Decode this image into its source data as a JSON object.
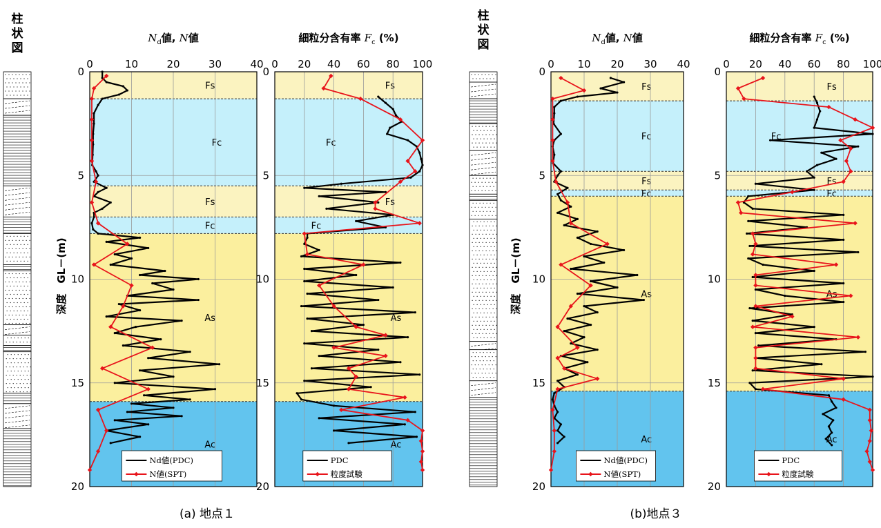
{
  "figure": {
    "site1_caption": "(a) 地点１",
    "site3_caption": "(b)地点３",
    "column_title": "柱状図",
    "depth_label": "深度　GL－(m)"
  },
  "chart_data": [
    {
      "type": "line",
      "panel": "site1-N",
      "title": "Nd値, N値",
      "xlabel": "Nd値, N値",
      "ylabel": "深度　GL－(m)",
      "xlim": [
        0,
        40
      ],
      "ylim": [
        0,
        20
      ],
      "y_inverted": true,
      "xticks": [
        "0",
        "10",
        "20",
        "30",
        "40"
      ],
      "yticks": [
        "0",
        "5",
        "10",
        "15",
        "20"
      ],
      "grid": true,
      "legend_position": "bottom",
      "layers": [
        {
          "label": "Fs",
          "top": 0,
          "bottom": 1.3,
          "color": "#fbf3c0"
        },
        {
          "label": "Fc",
          "top": 1.3,
          "bottom": 5.5,
          "color": "#c5f0fb"
        },
        {
          "label": "Fs",
          "top": 5.5,
          "bottom": 7.0,
          "color": "#fbf3c0"
        },
        {
          "label": "Fc",
          "top": 7.0,
          "bottom": 7.8,
          "color": "#c5f0fb"
        },
        {
          "label": "As",
          "top": 7.8,
          "bottom": 15.9,
          "color": "#fbef9e"
        },
        {
          "label": "Ac",
          "top": 15.9,
          "bottom": 20,
          "color": "#62c4ee"
        }
      ],
      "series": [
        {
          "name": "Nd値(PDC)",
          "color": "#000000",
          "y": [
            0,
            0.3,
            0.5,
            0.7,
            0.9,
            1.1,
            1.3,
            1.6,
            2.0,
            2.5,
            3.0,
            3.5,
            4.0,
            4.5,
            4.8,
            5.0,
            5.3,
            5.6,
            5.8,
            6.0,
            6.3,
            6.6,
            6.8,
            7.0,
            7.3,
            7.6,
            7.8,
            8.0,
            8.2,
            8.5,
            8.8,
            9.0,
            9.3,
            9.6,
            9.8,
            10.0,
            10.2,
            10.5,
            10.8,
            11.0,
            11.2,
            11.5,
            11.8,
            12.0,
            12.3,
            12.6,
            12.9,
            13.2,
            13.5,
            13.8,
            14.1,
            14.4,
            14.7,
            15.0,
            15.3,
            15.6,
            15.8,
            16.0,
            16.2,
            16.4,
            16.6,
            16.8,
            17.0,
            17.3,
            17.6,
            17.9
          ],
          "x": [
            3,
            3,
            4,
            8,
            9,
            7,
            3,
            2,
            1,
            1,
            0.8,
            0.8,
            0.7,
            0.6,
            1.5,
            2,
            1,
            4,
            2,
            1,
            5,
            3,
            1,
            1,
            0.5,
            0.8,
            2,
            12,
            4,
            14,
            6,
            10,
            5,
            18,
            12,
            26,
            15,
            20,
            9,
            26,
            7,
            12,
            4,
            22,
            11,
            6,
            17,
            8,
            24,
            14,
            31,
            12,
            20,
            6,
            30,
            13,
            24,
            10,
            20,
            9,
            22,
            6,
            14,
            4,
            12,
            5
          ]
        },
        {
          "name": "N値(SPT)",
          "color": "#e8141b",
          "y": [
            0.2,
            0.8,
            1.3,
            2.3,
            3.3,
            4.3,
            5.3,
            6.3,
            7.3,
            8.3,
            9.3,
            10.3,
            11.3,
            12.3,
            13.3,
            14.3,
            15.3,
            16.3,
            17.3,
            18.3,
            19.2
          ],
          "x": [
            4,
            1,
            0.5,
            0.5,
            0.5,
            0.5,
            1.5,
            0.5,
            2,
            9,
            1,
            10,
            8,
            5,
            15,
            3,
            14,
            2,
            4,
            2,
            0
          ]
        }
      ]
    },
    {
      "type": "line",
      "panel": "site1-Fc",
      "title": "細粒分含有率 Fc (%)",
      "xlabel": "細粒分含有率 Fc (%)",
      "xlim": [
        0,
        100
      ],
      "ylim": [
        0,
        20
      ],
      "y_inverted": true,
      "xticks": [
        "0",
        "20",
        "40",
        "60",
        "80",
        "100"
      ],
      "yticks": [
        "0",
        "5",
        "10",
        "15",
        "20"
      ],
      "grid": true,
      "legend_position": "bottom",
      "layers": [
        {
          "label": "Fs",
          "top": 0,
          "bottom": 1.3,
          "color": "#fbf3c0"
        },
        {
          "label": "Fc",
          "top": 1.3,
          "bottom": 5.5,
          "color": "#c5f0fb"
        },
        {
          "label": "Fs",
          "top": 5.5,
          "bottom": 7.0,
          "color": "#fbf3c0"
        },
        {
          "label": "Fc",
          "top": 7.0,
          "bottom": 7.8,
          "color": "#c5f0fb"
        },
        {
          "label": "As",
          "top": 7.8,
          "bottom": 15.9,
          "color": "#fbef9e"
        },
        {
          "label": "Ac",
          "top": 15.9,
          "bottom": 20,
          "color": "#62c4ee"
        }
      ],
      "series": [
        {
          "name": "PDC",
          "color": "#000000",
          "y": [
            1.2,
            1.5,
            1.8,
            2.1,
            2.4,
            2.7,
            3.0,
            3.3,
            3.6,
            3.9,
            4.2,
            4.5,
            4.8,
            5.1,
            5.4,
            5.6,
            5.8,
            6.0,
            6.3,
            6.6,
            6.9,
            7.2,
            7.5,
            7.8,
            8.0,
            8.3,
            8.6,
            8.9,
            9.2,
            9.5,
            9.8,
            10.1,
            10.4,
            10.7,
            11.0,
            11.3,
            11.6,
            11.9,
            12.2,
            12.5,
            12.8,
            13.1,
            13.4,
            13.7,
            14.0,
            14.3,
            14.6,
            14.9,
            15.2,
            15.5,
            15.8,
            16.1,
            16.4,
            16.7,
            17.0,
            17.3,
            17.6,
            17.9
          ],
          "x": [
            70,
            75,
            80,
            82,
            86,
            78,
            76,
            90,
            96,
            98,
            99,
            100,
            98,
            92,
            45,
            20,
            75,
            30,
            70,
            35,
            80,
            55,
            75,
            22,
            22,
            20,
            30,
            18,
            85,
            20,
            55,
            20,
            80,
            22,
            70,
            18,
            95,
            22,
            60,
            25,
            90,
            20,
            70,
            30,
            85,
            25,
            98,
            20,
            65,
            15,
            18,
            40,
            95,
            30,
            88,
            40,
            96,
            50
          ]
        },
        {
          "name": "粒度試験",
          "color": "#e8141b",
          "y": [
            0.2,
            0.8,
            1.3,
            2.3,
            3.3,
            4.3,
            4.8,
            5.3,
            6.3,
            6.6,
            7.3,
            7.8,
            8.8,
            9.3,
            10.3,
            11.3,
            12.3,
            12.7,
            13.3,
            13.7,
            14.3,
            14.7,
            15.3,
            15.7,
            16.3,
            16.8,
            17.3,
            17.8,
            18.3,
            18.8,
            19.2
          ],
          "x": [
            38,
            33,
            58,
            85,
            100,
            90,
            95,
            85,
            68,
            68,
            98,
            20,
            22,
            60,
            30,
            40,
            55,
            75,
            40,
            75,
            50,
            55,
            50,
            88,
            45,
            90,
            100,
            99,
            100,
            99,
            100
          ]
        }
      ]
    },
    {
      "type": "line",
      "panel": "site3-N",
      "title": "Nd値, N値",
      "xlabel": "Nd値, N値",
      "ylabel": "深度　GL－(m)",
      "xlim": [
        0,
        40
      ],
      "ylim": [
        0,
        20
      ],
      "y_inverted": true,
      "xticks": [
        "0",
        "10",
        "20",
        "30",
        "40"
      ],
      "yticks": [
        "0",
        "5",
        "10",
        "15",
        "20"
      ],
      "grid": true,
      "legend_position": "bottom",
      "layers": [
        {
          "label": "Fs",
          "top": 0,
          "bottom": 1.4,
          "color": "#fbf3c0"
        },
        {
          "label": "Fc",
          "top": 1.4,
          "bottom": 4.8,
          "color": "#c5f0fb"
        },
        {
          "label": "Fs",
          "top": 4.8,
          "bottom": 5.7,
          "color": "#fbf3c0"
        },
        {
          "label": "Fc",
          "top": 5.7,
          "bottom": 6.0,
          "color": "#c5f0fb"
        },
        {
          "label": "As",
          "top": 6.0,
          "bottom": 15.4,
          "color": "#fbef9e"
        },
        {
          "label": "Ac",
          "top": 15.4,
          "bottom": 20,
          "color": "#62c4ee"
        }
      ],
      "series": [
        {
          "name": "Nd値(PDC)",
          "color": "#000000",
          "y": [
            0.3,
            0.5,
            0.8,
            1.0,
            1.2,
            1.4,
            1.7,
            2.0,
            2.5,
            3.0,
            3.3,
            3.6,
            4.0,
            4.4,
            4.8,
            5.0,
            5.3,
            5.6,
            5.9,
            6.2,
            6.5,
            6.8,
            7.1,
            7.4,
            7.7,
            8.0,
            8.3,
            8.6,
            8.9,
            9.2,
            9.5,
            9.8,
            10.1,
            10.4,
            10.7,
            11.0,
            11.3,
            11.6,
            11.9,
            12.2,
            12.5,
            12.8,
            13.1,
            13.4,
            13.7,
            14.0,
            14.3,
            14.6,
            14.9,
            15.2,
            15.5,
            15.8,
            16.1,
            16.4,
            16.7,
            17.0,
            17.3,
            17.6,
            17.9
          ],
          "x": [
            18,
            22,
            15,
            20,
            8,
            3,
            1,
            1,
            0.8,
            3,
            1,
            0.5,
            1,
            0.6,
            3,
            2,
            1,
            5,
            2,
            3,
            6,
            2,
            8,
            4,
            14,
            8,
            12,
            22,
            10,
            16,
            6,
            26,
            12,
            20,
            8,
            28,
            10,
            14,
            5,
            12,
            4,
            10,
            6,
            14,
            3,
            11,
            4,
            8,
            2,
            4,
            1,
            0.5,
            1,
            2,
            1,
            3,
            2,
            4,
            2
          ]
        },
        {
          "name": "N値(SPT)",
          "color": "#e8141b",
          "y": [
            0.3,
            0.9,
            1.3,
            2.3,
            3.3,
            4.3,
            5.3,
            6.3,
            7.3,
            8.3,
            9.3,
            10.3,
            11.3,
            12.3,
            13.3,
            13.8,
            14.3,
            14.8,
            15.3,
            16.3,
            17.3,
            18.3,
            19.2
          ],
          "x": [
            3,
            10,
            0.5,
            0.5,
            0.5,
            0.5,
            1.5,
            5,
            6,
            17,
            3,
            12,
            6,
            2,
            8,
            2,
            4,
            14,
            2,
            0.5,
            1,
            1,
            0
          ]
        }
      ]
    },
    {
      "type": "line",
      "panel": "site3-Fc",
      "title": "細粒分含有率 Fc (%)",
      "xlabel": "細粒分含有率 Fc (%)",
      "xlim": [
        0,
        100
      ],
      "ylim": [
        0,
        20
      ],
      "y_inverted": true,
      "xticks": [
        "0",
        "20",
        "40",
        "60",
        "80",
        "100"
      ],
      "yticks": [
        "0",
        "5",
        "10",
        "15",
        "20"
      ],
      "grid": true,
      "legend_position": "bottom",
      "layers": [
        {
          "label": "Fs",
          "top": 0,
          "bottom": 1.4,
          "color": "#fbf3c0"
        },
        {
          "label": "Fc",
          "top": 1.4,
          "bottom": 4.8,
          "color": "#c5f0fb"
        },
        {
          "label": "Fs",
          "top": 4.8,
          "bottom": 5.7,
          "color": "#fbf3c0"
        },
        {
          "label": "Fc",
          "top": 5.7,
          "bottom": 6.0,
          "color": "#c5f0fb"
        },
        {
          "label": "As",
          "top": 6.0,
          "bottom": 15.4,
          "color": "#fbef9e"
        },
        {
          "label": "Ac",
          "top": 15.4,
          "bottom": 20,
          "color": "#62c4ee"
        }
      ],
      "series": [
        {
          "name": "PDC",
          "color": "#000000",
          "y": [
            1.2,
            1.5,
            1.9,
            2.3,
            2.7,
            3.0,
            3.3,
            3.6,
            3.9,
            4.2,
            4.5,
            4.8,
            5.1,
            5.4,
            5.7,
            6.0,
            6.3,
            6.6,
            6.9,
            7.2,
            7.5,
            7.8,
            8.1,
            8.4,
            8.7,
            9.0,
            9.3,
            9.6,
            9.9,
            10.2,
            10.5,
            10.8,
            11.1,
            11.4,
            11.7,
            12.0,
            12.3,
            12.6,
            12.9,
            13.2,
            13.5,
            13.8,
            14.1,
            14.4,
            14.7,
            15.0,
            15.3,
            15.6,
            15.9,
            16.2,
            16.5,
            16.8,
            17.1,
            17.4,
            17.7,
            18.0
          ],
          "x": [
            60,
            62,
            64,
            62,
            60,
            100,
            30,
            90,
            65,
            75,
            62,
            55,
            60,
            20,
            60,
            15,
            12,
            18,
            80,
            15,
            55,
            14,
            80,
            16,
            90,
            15,
            25,
            60,
            18,
            80,
            20,
            40,
            80,
            16,
            45,
            18,
            60,
            20,
            75,
            22,
            95,
            20,
            65,
            18,
            100,
            16,
            20,
            70,
            72,
            75,
            66,
            73,
            70,
            72,
            68,
            72
          ]
        },
        {
          "name": "粒度試験",
          "color": "#e8141b",
          "y": [
            0.3,
            0.8,
            1.3,
            1.7,
            2.3,
            2.7,
            3.3,
            3.7,
            4.3,
            4.8,
            5.3,
            5.8,
            6.3,
            6.8,
            7.3,
            7.8,
            8.3,
            8.8,
            9.3,
            9.8,
            10.3,
            10.8,
            11.3,
            11.8,
            12.3,
            12.8,
            13.3,
            13.8,
            14.3,
            14.8,
            15.3,
            15.8,
            16.3,
            16.8,
            17.3,
            17.8,
            18.3,
            18.8,
            19.2
          ],
          "x": [
            25,
            8,
            12,
            70,
            88,
            100,
            78,
            85,
            82,
            85,
            80,
            45,
            8,
            10,
            88,
            18,
            20,
            18,
            75,
            20,
            20,
            85,
            20,
            45,
            18,
            90,
            20,
            20,
            20,
            80,
            25,
            80,
            98,
            98,
            99,
            98,
            96,
            98,
            100
          ]
        }
      ]
    }
  ]
}
